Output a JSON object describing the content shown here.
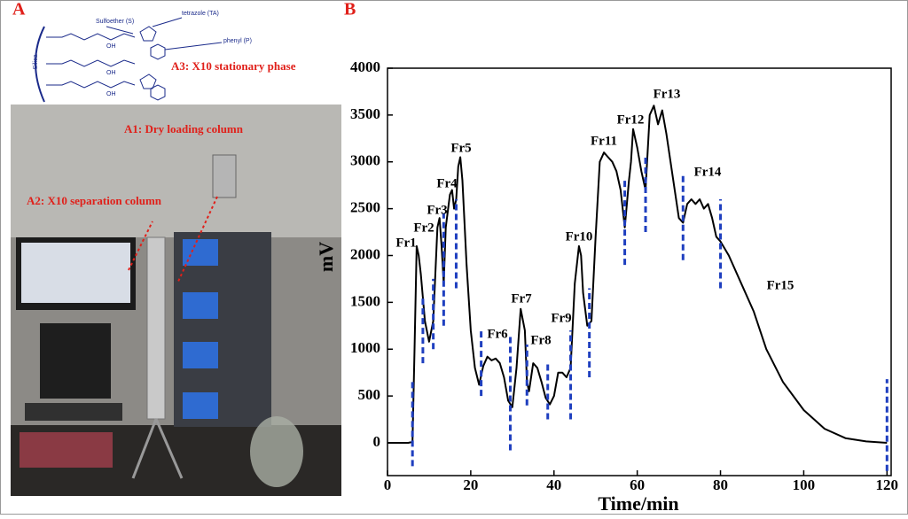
{
  "panel_a": {
    "label": "A",
    "structure_labels": [
      "Sulfoether (S)",
      "tetrazole (TA)",
      "phenyl (P)",
      "Silica",
      "OH",
      "OH",
      "OH"
    ],
    "stationary_phase": "A3: X10 stationary phase",
    "dry_loading": "A1: Dry loading column",
    "separation": "A2:  X10 separation column"
  },
  "chart_data": {
    "type": "line",
    "panel_label": "B",
    "x_label": "Time/min",
    "y_label": "mV",
    "color": "#000000",
    "marker_color": "#1f3fbf",
    "xlim": [
      0,
      121
    ],
    "ylim": [
      -350,
      4000
    ],
    "xticks": [
      0,
      20,
      40,
      60,
      80,
      100,
      120
    ],
    "yticks": [
      0,
      500,
      1000,
      1500,
      2000,
      2500,
      3000,
      3500,
      4000
    ],
    "x": [
      0,
      5,
      6,
      6.5,
      7,
      7.5,
      8,
      9,
      10,
      11,
      12,
      12.5,
      13,
      13.5,
      14,
      15,
      15.5,
      16,
      16.5,
      17,
      17.5,
      18,
      19,
      20,
      21,
      22,
      23,
      24,
      25,
      26,
      27,
      28,
      29,
      30,
      31,
      32,
      33,
      33.5,
      34,
      35,
      36,
      37,
      38,
      39,
      40,
      41,
      42,
      43,
      44,
      45,
      46,
      46.5,
      47,
      48,
      49,
      50,
      51,
      52,
      53,
      54,
      55,
      56,
      57,
      58,
      58.5,
      59,
      60,
      61,
      62,
      63,
      64,
      65,
      66,
      67,
      68,
      69,
      70,
      71,
      72,
      73,
      74,
      75,
      76,
      77,
      78,
      79,
      80,
      82,
      85,
      88,
      91,
      95,
      100,
      105,
      110,
      115,
      120
    ],
    "values": [
      0,
      0,
      10,
      1000,
      2100,
      2000,
      1800,
      1300,
      1080,
      1300,
      2300,
      2400,
      2100,
      1700,
      2300,
      2650,
      2700,
      2500,
      2600,
      2950,
      3050,
      2800,
      1900,
      1200,
      800,
      620,
      820,
      920,
      880,
      900,
      850,
      700,
      450,
      380,
      800,
      1430,
      1200,
      650,
      550,
      850,
      800,
      650,
      480,
      410,
      500,
      750,
      750,
      700,
      800,
      1700,
      2100,
      2000,
      1600,
      1250,
      1300,
      2200,
      3000,
      3100,
      3050,
      3000,
      2900,
      2700,
      2300,
      2800,
      3000,
      3350,
      3150,
      2900,
      2700,
      3500,
      3600,
      3400,
      3550,
      3300,
      3000,
      2700,
      2400,
      2350,
      2550,
      2600,
      2550,
      2600,
      2500,
      2550,
      2400,
      2200,
      2150,
      2000,
      1700,
      1400,
      1000,
      650,
      350,
      150,
      50,
      15,
      0
    ],
    "fraction_lines": [
      {
        "x": 6,
        "ymin": -250,
        "ymax": 680
      },
      {
        "x": 8.5,
        "ymin": 850,
        "ymax": 1550
      },
      {
        "x": 11,
        "ymin": 1000,
        "ymax": 1750
      },
      {
        "x": 13.5,
        "ymin": 1250,
        "ymax": 2450
      },
      {
        "x": 16.5,
        "ymin": 1650,
        "ymax": 2600
      },
      {
        "x": 22.5,
        "ymin": 500,
        "ymax": 1200
      },
      {
        "x": 29.5,
        "ymin": -80,
        "ymax": 1150
      },
      {
        "x": 33.5,
        "ymin": 400,
        "ymax": 1050
      },
      {
        "x": 38.5,
        "ymin": 250,
        "ymax": 850
      },
      {
        "x": 44,
        "ymin": 250,
        "ymax": 1200
      },
      {
        "x": 48.5,
        "ymin": 700,
        "ymax": 1650
      },
      {
        "x": 57,
        "ymin": 1900,
        "ymax": 2800
      },
      {
        "x": 62,
        "ymin": 2250,
        "ymax": 3050
      },
      {
        "x": 71,
        "ymin": 1950,
        "ymax": 2850
      },
      {
        "x": 80,
        "ymin": 1650,
        "ymax": 2600
      },
      {
        "x": 120,
        "ymin": -300,
        "ymax": 680
      }
    ],
    "annotations": [
      "Fr1",
      "Fr2",
      "Fr3",
      "Fr4",
      "Fr5",
      "Fr6",
      "Fr7",
      "Fr8",
      "Fr9",
      "Fr10",
      "Fr11",
      "Fr12",
      "Fr13",
      "Fr14",
      "Fr15"
    ]
  }
}
